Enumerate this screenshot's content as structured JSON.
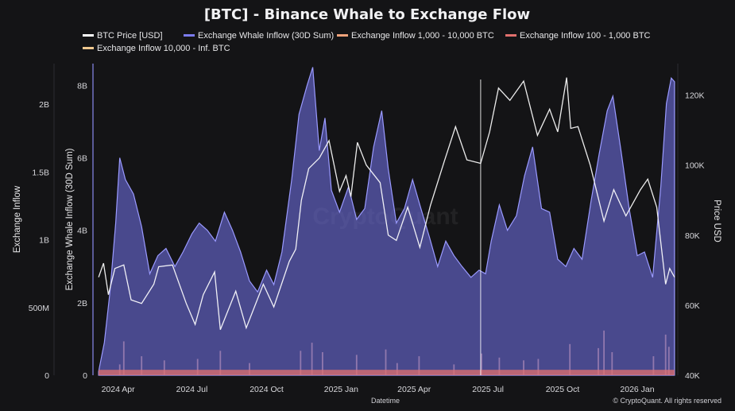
{
  "chart_data": {
    "type": "area",
    "title": "[BTC] - Binance Whale to Exchange Flow",
    "xlabel": "Datetime",
    "ylabel_left": "Exchange Inflow",
    "ylabel_mid": "Exchange Whale Inflow (30D Sum)",
    "ylabel_right": "Price USD",
    "x_range": [
      "2024-03-01",
      "2026-02-20"
    ],
    "x_ticks": [
      {
        "date": "2024-04-01",
        "label": "2024 Apr"
      },
      {
        "date": "2024-07-01",
        "label": "2024 Jul"
      },
      {
        "date": "2024-10-01",
        "label": "2024 Oct"
      },
      {
        "date": "2025-01-01",
        "label": "2025 Jan"
      },
      {
        "date": "2025-04-01",
        "label": "2025 Apr"
      },
      {
        "date": "2025-07-01",
        "label": "2025 Jul"
      },
      {
        "date": "2025-10-01",
        "label": "2025 Oct"
      },
      {
        "date": "2026-01-01",
        "label": "2026 Jan"
      }
    ],
    "y_left": {
      "range": [
        0,
        2300000000
      ],
      "ticks": [
        {
          "v": 0,
          "label": "0"
        },
        {
          "v": 500000000,
          "label": "500M"
        },
        {
          "v": 1000000000,
          "label": "1B"
        },
        {
          "v": 1500000000,
          "label": "1.5B"
        },
        {
          "v": 2000000000,
          "label": "2B"
        }
      ]
    },
    "y_mid": {
      "range": [
        0,
        8600000000
      ],
      "ticks": [
        {
          "v": 0,
          "label": "0"
        },
        {
          "v": 2000000000,
          "label": "2B"
        },
        {
          "v": 4000000000,
          "label": "4B"
        },
        {
          "v": 6000000000,
          "label": "6B"
        },
        {
          "v": 8000000000,
          "label": "8B"
        }
      ]
    },
    "y_right": {
      "range": [
        40000,
        129000
      ],
      "ticks": [
        {
          "v": 40000,
          "label": "40K"
        },
        {
          "v": 60000,
          "label": "60K"
        },
        {
          "v": 80000,
          "label": "80K"
        },
        {
          "v": 100000,
          "label": "100K"
        },
        {
          "v": 120000,
          "label": "120K"
        }
      ]
    },
    "legend_placement": "top",
    "series": [
      {
        "name": "BTC Price [USD]",
        "axis": "right",
        "kind": "line",
        "color": "#ffffff",
        "points": [
          [
            "2024-03-08",
            68000
          ],
          [
            "2024-03-14",
            72000
          ],
          [
            "2024-03-20",
            63000
          ],
          [
            "2024-03-28",
            70500
          ],
          [
            "2024-04-08",
            71500
          ],
          [
            "2024-04-17",
            61500
          ],
          [
            "2024-04-30",
            60500
          ],
          [
            "2024-05-15",
            66000
          ],
          [
            "2024-05-21",
            71000
          ],
          [
            "2024-06-07",
            71500
          ],
          [
            "2024-06-24",
            60500
          ],
          [
            "2024-07-05",
            54500
          ],
          [
            "2024-07-15",
            63000
          ],
          [
            "2024-07-29",
            69500
          ],
          [
            "2024-08-05",
            53000
          ],
          [
            "2024-08-24",
            64000
          ],
          [
            "2024-09-06",
            53500
          ],
          [
            "2024-09-27",
            66000
          ],
          [
            "2024-10-10",
            59500
          ],
          [
            "2024-10-29",
            72500
          ],
          [
            "2024-11-06",
            76000
          ],
          [
            "2024-11-13",
            90000
          ],
          [
            "2024-11-22",
            99000
          ],
          [
            "2024-12-05",
            102000
          ],
          [
            "2024-12-17",
            107000
          ],
          [
            "2024-12-30",
            92500
          ],
          [
            "2025-01-07",
            97000
          ],
          [
            "2025-01-13",
            91000
          ],
          [
            "2025-01-21",
            106500
          ],
          [
            "2025-02-01",
            100000
          ],
          [
            "2025-02-18",
            95000
          ],
          [
            "2025-02-28",
            80000
          ],
          [
            "2025-03-10",
            78500
          ],
          [
            "2025-03-24",
            88000
          ],
          [
            "2025-04-08",
            76500
          ],
          [
            "2025-04-21",
            88500
          ],
          [
            "2025-05-08",
            101000
          ],
          [
            "2025-05-22",
            111000
          ],
          [
            "2025-06-05",
            101500
          ],
          [
            "2025-06-22",
            100500
          ],
          [
            "2025-07-03",
            109500
          ],
          [
            "2025-07-14",
            122000
          ],
          [
            "2025-07-28",
            118500
          ],
          [
            "2025-08-14",
            124000
          ],
          [
            "2025-08-31",
            108500
          ],
          [
            "2025-09-15",
            116000
          ],
          [
            "2025-09-25",
            109500
          ],
          [
            "2025-10-06",
            125000
          ],
          [
            "2025-10-11",
            110500
          ],
          [
            "2025-10-20",
            111000
          ],
          [
            "2025-11-04",
            100000
          ],
          [
            "2025-11-21",
            84000
          ],
          [
            "2025-12-03",
            93000
          ],
          [
            "2025-12-18",
            85500
          ],
          [
            "2026-01-05",
            93000
          ],
          [
            "2026-01-14",
            96000
          ],
          [
            "2026-01-25",
            88000
          ],
          [
            "2026-02-05",
            66000
          ],
          [
            "2026-02-10",
            70500
          ],
          [
            "2026-02-16",
            68000
          ]
        ]
      },
      {
        "name": "Exchange Whale Inflow (30D Sum)",
        "axis": "mid",
        "kind": "area",
        "color": "#7b7bef",
        "points": [
          [
            "2024-03-08",
            100000000
          ],
          [
            "2024-03-15",
            900000000
          ],
          [
            "2024-03-22",
            2300000000
          ],
          [
            "2024-03-29",
            4200000000
          ],
          [
            "2024-04-03",
            6000000000
          ],
          [
            "2024-04-10",
            5400000000
          ],
          [
            "2024-04-20",
            5000000000
          ],
          [
            "2024-04-30",
            4100000000
          ],
          [
            "2024-05-10",
            2800000000
          ],
          [
            "2024-05-20",
            3300000000
          ],
          [
            "2024-05-30",
            3500000000
          ],
          [
            "2024-06-10",
            3000000000
          ],
          [
            "2024-06-20",
            3400000000
          ],
          [
            "2024-07-01",
            3900000000
          ],
          [
            "2024-07-10",
            4200000000
          ],
          [
            "2024-07-20",
            4000000000
          ],
          [
            "2024-07-30",
            3700000000
          ],
          [
            "2024-08-10",
            4500000000
          ],
          [
            "2024-08-20",
            4000000000
          ],
          [
            "2024-08-30",
            3400000000
          ],
          [
            "2024-09-10",
            2600000000
          ],
          [
            "2024-09-20",
            2300000000
          ],
          [
            "2024-10-01",
            2900000000
          ],
          [
            "2024-10-10",
            2500000000
          ],
          [
            "2024-10-20",
            3400000000
          ],
          [
            "2024-11-01",
            5400000000
          ],
          [
            "2024-11-10",
            7200000000
          ],
          [
            "2024-11-20",
            8000000000
          ],
          [
            "2024-11-27",
            8500000000
          ],
          [
            "2024-12-05",
            6200000000
          ],
          [
            "2024-12-12",
            7100000000
          ],
          [
            "2024-12-20",
            5100000000
          ],
          [
            "2024-12-30",
            4500000000
          ],
          [
            "2025-01-10",
            5200000000
          ],
          [
            "2025-01-20",
            4300000000
          ],
          [
            "2025-01-30",
            4600000000
          ],
          [
            "2025-02-10",
            6300000000
          ],
          [
            "2025-02-20",
            7300000000
          ],
          [
            "2025-02-28",
            5700000000
          ],
          [
            "2025-03-10",
            4200000000
          ],
          [
            "2025-03-20",
            4600000000
          ],
          [
            "2025-03-30",
            5400000000
          ],
          [
            "2025-04-08",
            4700000000
          ],
          [
            "2025-04-20",
            3800000000
          ],
          [
            "2025-04-30",
            3000000000
          ],
          [
            "2025-05-10",
            3700000000
          ],
          [
            "2025-05-20",
            3300000000
          ],
          [
            "2025-05-30",
            3000000000
          ],
          [
            "2025-06-10",
            2700000000
          ],
          [
            "2025-06-20",
            2900000000
          ],
          [
            "2025-06-28",
            2800000000
          ],
          [
            "2025-07-05",
            3700000000
          ],
          [
            "2025-07-15",
            4700000000
          ],
          [
            "2025-07-25",
            4000000000
          ],
          [
            "2025-08-05",
            4400000000
          ],
          [
            "2025-08-15",
            5500000000
          ],
          [
            "2025-08-25",
            6300000000
          ],
          [
            "2025-09-05",
            4600000000
          ],
          [
            "2025-09-15",
            4500000000
          ],
          [
            "2025-09-25",
            3200000000
          ],
          [
            "2025-10-05",
            3000000000
          ],
          [
            "2025-10-15",
            3500000000
          ],
          [
            "2025-10-25",
            3200000000
          ],
          [
            "2025-11-05",
            4800000000
          ],
          [
            "2025-11-15",
            6100000000
          ],
          [
            "2025-11-25",
            7300000000
          ],
          [
            "2025-12-02",
            7700000000
          ],
          [
            "2025-12-12",
            6200000000
          ],
          [
            "2025-12-22",
            4600000000
          ],
          [
            "2026-01-01",
            3300000000
          ],
          [
            "2026-01-10",
            3400000000
          ],
          [
            "2026-01-20",
            2700000000
          ],
          [
            "2026-01-30",
            5200000000
          ],
          [
            "2026-02-06",
            7500000000
          ],
          [
            "2026-02-12",
            8200000000
          ],
          [
            "2026-02-16",
            8100000000
          ]
        ]
      },
      {
        "name": "Exchange Inflow 1,000 - 10,000 BTC",
        "axis": "left",
        "kind": "bar",
        "color": "#f0a37b"
      },
      {
        "name": "Exchange Inflow 100 - 1,000 BTC",
        "axis": "left",
        "kind": "bar",
        "color": "#e1706d"
      },
      {
        "name": "Exchange Inflow 10,000 - Inf. BTC",
        "axis": "left",
        "kind": "bar",
        "color": "#efc88f"
      }
    ],
    "inflow_spikes": [
      [
        "2024-04-03",
        80000000
      ],
      [
        "2024-04-08",
        250000000
      ],
      [
        "2024-04-30",
        140000000
      ],
      [
        "2024-05-28",
        110000000
      ],
      [
        "2024-07-08",
        120000000
      ],
      [
        "2024-08-05",
        180000000
      ],
      [
        "2024-09-10",
        90000000
      ],
      [
        "2024-11-12",
        180000000
      ],
      [
        "2024-11-26",
        240000000
      ],
      [
        "2024-12-09",
        170000000
      ],
      [
        "2025-01-20",
        150000000
      ],
      [
        "2025-02-25",
        190000000
      ],
      [
        "2025-03-11",
        90000000
      ],
      [
        "2025-04-07",
        140000000
      ],
      [
        "2025-05-20",
        80000000
      ],
      [
        "2025-06-23",
        160000000
      ],
      [
        "2025-07-15",
        130000000
      ],
      [
        "2025-08-14",
        110000000
      ],
      [
        "2025-09-01",
        120000000
      ],
      [
        "2025-10-10",
        230000000
      ],
      [
        "2025-11-14",
        200000000
      ],
      [
        "2025-11-21",
        330000000
      ],
      [
        "2025-12-01",
        170000000
      ],
      [
        "2026-01-21",
        140000000
      ],
      [
        "2026-02-05",
        300000000
      ],
      [
        "2026-02-09",
        210000000
      ]
    ],
    "inflow_base_level": 40000000,
    "marker_line_date": "2025-06-22",
    "watermark": "CryptoQuant",
    "credit": "© CryptoQuant. All rights reserved",
    "grid": false
  }
}
